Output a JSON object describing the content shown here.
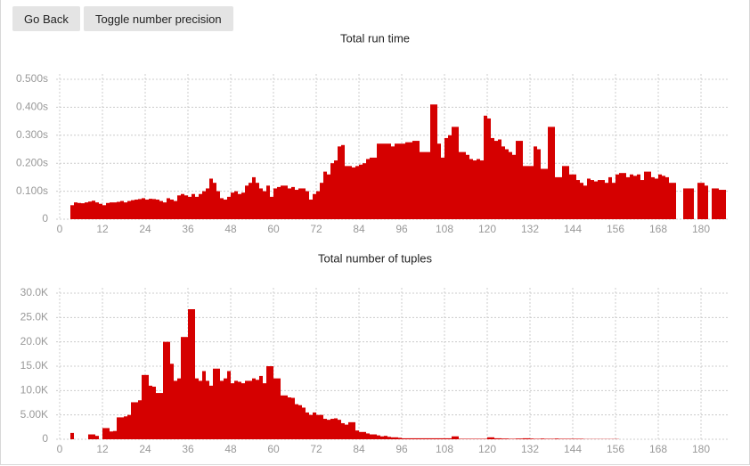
{
  "buttons": [
    "Go Back",
    "Toggle number precision"
  ],
  "chart_data": [
    {
      "type": "bar",
      "title": "Total run time",
      "color": "#d50000",
      "grid": true,
      "x": [
        0,
        1,
        2,
        3,
        4,
        5,
        6,
        7,
        8,
        9,
        10,
        11,
        12,
        13,
        14,
        15,
        16,
        17,
        18,
        19,
        20,
        21,
        22,
        23,
        24,
        25,
        26,
        27,
        28,
        29,
        30,
        31,
        32,
        33,
        34,
        35,
        36,
        37,
        38,
        39,
        40,
        41,
        42,
        43,
        44,
        45,
        46,
        47,
        48,
        49,
        50,
        51,
        52,
        53,
        54,
        55,
        56,
        57,
        58,
        59,
        60,
        61,
        62,
        63,
        64,
        65,
        66,
        67,
        68,
        69,
        70,
        71,
        72,
        73,
        74,
        75,
        76,
        77,
        78,
        79,
        80,
        81,
        82,
        83,
        84,
        85,
        86,
        87,
        88,
        89,
        90,
        91,
        92,
        93,
        94,
        95,
        96,
        97,
        98,
        99,
        100,
        101,
        102,
        103,
        104,
        105,
        106,
        107,
        108,
        109,
        110,
        111,
        112,
        113,
        114,
        115,
        116,
        117,
        118,
        119,
        120,
        121,
        122,
        123,
        124,
        125,
        126,
        127,
        128,
        129,
        130,
        131,
        132,
        133,
        134,
        135,
        136,
        137,
        138,
        139,
        140,
        141,
        142,
        143,
        144,
        145,
        146,
        147,
        148,
        149,
        150,
        151,
        152,
        153,
        154,
        155,
        156,
        157,
        158,
        159,
        160,
        161,
        162,
        163,
        164,
        165,
        166,
        167,
        168,
        169,
        170,
        171,
        172,
        173,
        174,
        175,
        176,
        177,
        178,
        179,
        180,
        181,
        182,
        183,
        184,
        185,
        186
      ],
      "values": [
        0,
        0,
        0,
        0.05,
        0.06,
        0.058,
        0.057,
        0.06,
        0.063,
        0.066,
        0.06,
        0.055,
        0.05,
        0.058,
        0.06,
        0.06,
        0.062,
        0.065,
        0.06,
        0.065,
        0.068,
        0.07,
        0.072,
        0.075,
        0.07,
        0.073,
        0.072,
        0.07,
        0.065,
        0.06,
        0.075,
        0.07,
        0.065,
        0.085,
        0.09,
        0.085,
        0.08,
        0.09,
        0.08,
        0.09,
        0.1,
        0.11,
        0.145,
        0.13,
        0.1,
        0.075,
        0.07,
        0.08,
        0.095,
        0.1,
        0.09,
        0.095,
        0.12,
        0.13,
        0.15,
        0.13,
        0.11,
        0.1,
        0.12,
        0.08,
        0.11,
        0.115,
        0.12,
        0.12,
        0.11,
        0.115,
        0.105,
        0.11,
        0.11,
        0.1,
        0.07,
        0.09,
        0.1,
        0.13,
        0.17,
        0.16,
        0.2,
        0.21,
        0.26,
        0.265,
        0.19,
        0.19,
        0.185,
        0.19,
        0.195,
        0.2,
        0.215,
        0.22,
        0.22,
        0.27,
        0.27,
        0.27,
        0.27,
        0.26,
        0.27,
        0.27,
        0.27,
        0.275,
        0.275,
        0.28,
        0.28,
        0.24,
        0.24,
        0.24,
        0.41,
        0.41,
        0.27,
        0.22,
        0.29,
        0.3,
        0.33,
        0.33,
        0.24,
        0.24,
        0.23,
        0.215,
        0.21,
        0.215,
        0.21,
        0.37,
        0.36,
        0.29,
        0.28,
        0.285,
        0.26,
        0.25,
        0.24,
        0.23,
        0.28,
        0.28,
        0.19,
        0.19,
        0.19,
        0.26,
        0.25,
        0.18,
        0.18,
        0.33,
        0.33,
        0.15,
        0.15,
        0.19,
        0.19,
        0.16,
        0.16,
        0.14,
        0.13,
        0.12,
        0.145,
        0.14,
        0.135,
        0.14,
        0.14,
        0.13,
        0.15,
        0.13,
        0.16,
        0.165,
        0.165,
        0.15,
        0.16,
        0.155,
        0.16,
        0.14,
        0.17,
        0.17,
        0.15,
        0.145,
        0.16,
        0.155,
        0.15,
        0.13,
        0.13,
        0,
        0,
        0.11,
        0.11,
        0.11,
        0,
        0.13,
        0.13,
        0.12,
        0,
        0.11,
        0.11,
        0.105,
        0.105
      ],
      "xlim": [
        -1,
        188
      ],
      "xticks": [
        0,
        12,
        24,
        36,
        48,
        60,
        72,
        84,
        96,
        108,
        120,
        132,
        144,
        156,
        168,
        180
      ],
      "ylim": [
        0,
        0.5
      ],
      "yticks": [
        0,
        {
          "value": 0.1,
          "label": "0.100s"
        },
        {
          "value": 0.2,
          "label": "0.200s"
        },
        {
          "value": 0.3,
          "label": "0.300s"
        },
        {
          "value": 0.4,
          "label": "0.400s"
        },
        {
          "value": 0.5,
          "label": "0.500s"
        }
      ]
    },
    {
      "type": "bar",
      "title": "Total number of tuples",
      "color": "#d50000",
      "grid": true,
      "x": [
        0,
        1,
        2,
        3,
        4,
        5,
        6,
        7,
        8,
        9,
        10,
        11,
        12,
        13,
        14,
        15,
        16,
        17,
        18,
        19,
        20,
        21,
        22,
        23,
        24,
        25,
        26,
        27,
        28,
        29,
        30,
        31,
        32,
        33,
        34,
        35,
        36,
        37,
        38,
        39,
        40,
        41,
        42,
        43,
        44,
        45,
        46,
        47,
        48,
        49,
        50,
        51,
        52,
        53,
        54,
        55,
        56,
        57,
        58,
        59,
        60,
        61,
        62,
        63,
        64,
        65,
        66,
        67,
        68,
        69,
        70,
        71,
        72,
        73,
        74,
        75,
        76,
        77,
        78,
        79,
        80,
        81,
        82,
        83,
        84,
        85,
        86,
        87,
        88,
        89,
        90,
        91,
        92,
        93,
        94,
        95,
        96,
        97,
        98,
        99,
        100,
        101,
        102,
        103,
        104,
        105,
        106,
        107,
        108,
        109,
        110,
        111,
        112,
        113,
        114,
        115,
        116,
        117,
        118,
        119,
        120,
        121,
        122,
        123,
        124,
        125,
        126,
        127,
        128,
        129,
        130,
        131,
        132,
        133,
        134,
        135,
        136,
        137,
        138,
        139,
        140,
        141,
        142,
        143,
        144,
        145,
        146,
        147,
        148,
        149,
        150,
        151,
        152,
        153,
        154,
        155,
        156,
        157,
        158,
        159,
        160,
        161,
        162,
        163,
        164,
        165,
        166,
        167,
        168,
        169,
        170,
        171,
        172,
        173,
        174,
        175,
        176,
        177,
        178,
        179,
        180,
        181,
        182,
        183,
        184,
        185,
        186
      ],
      "values": [
        0,
        0,
        0,
        1300,
        0,
        0,
        0,
        0,
        1000,
        1000,
        700,
        0,
        2300,
        2300,
        1600,
        1700,
        4500,
        4500,
        4700,
        5000,
        7600,
        7600,
        8000,
        13200,
        13200,
        11000,
        10800,
        9500,
        9500,
        20000,
        20000,
        15500,
        12000,
        12500,
        21000,
        21000,
        26700,
        26700,
        12500,
        12000,
        14000,
        12000,
        11000,
        14500,
        14500,
        12000,
        12500,
        14000,
        11500,
        12000,
        11800,
        11500,
        12000,
        12000,
        12500,
        12200,
        13000,
        11500,
        15000,
        15000,
        12500,
        12500,
        9000,
        9000,
        8600,
        8500,
        7200,
        7000,
        6500,
        5500,
        5000,
        5500,
        5000,
        5000,
        4200,
        4000,
        4200,
        4300,
        4000,
        3300,
        3000,
        3500,
        3500,
        1800,
        1500,
        1500,
        1200,
        1000,
        1000,
        800,
        600,
        700,
        500,
        400,
        400,
        300,
        200,
        200,
        200,
        200,
        200,
        200,
        200,
        200,
        200,
        200,
        200,
        200,
        200,
        200,
        600,
        600,
        100,
        100,
        100,
        100,
        100,
        100,
        100,
        100,
        400,
        400,
        200,
        200,
        150,
        150,
        100,
        100,
        150,
        150,
        200,
        200,
        150,
        100,
        100,
        150,
        100,
        100,
        100,
        150,
        100,
        100,
        100,
        100,
        100,
        100,
        100,
        50,
        50,
        50,
        50,
        50,
        50,
        50,
        50,
        50,
        50,
        0,
        0,
        0,
        0,
        0,
        0,
        0,
        0,
        0,
        0,
        0,
        0,
        0,
        0,
        0,
        0,
        0,
        0,
        0,
        0,
        0,
        0,
        0,
        0,
        0,
        0,
        0,
        0,
        0,
        0
      ],
      "xlim": [
        -1,
        188
      ],
      "xticks": [
        0,
        12,
        24,
        36,
        48,
        60,
        72,
        84,
        96,
        108,
        120,
        132,
        144,
        156,
        168,
        180
      ],
      "ylim": [
        0,
        30000
      ],
      "yticks": [
        0,
        {
          "value": 5000,
          "label": "5.00K"
        },
        {
          "value": 10000,
          "label": "10.0K"
        },
        {
          "value": 15000,
          "label": "15.0K"
        },
        {
          "value": 20000,
          "label": "20.0K"
        },
        {
          "value": 25000,
          "label": "25.0K"
        },
        {
          "value": 30000,
          "label": "30.0K"
        }
      ]
    }
  ]
}
